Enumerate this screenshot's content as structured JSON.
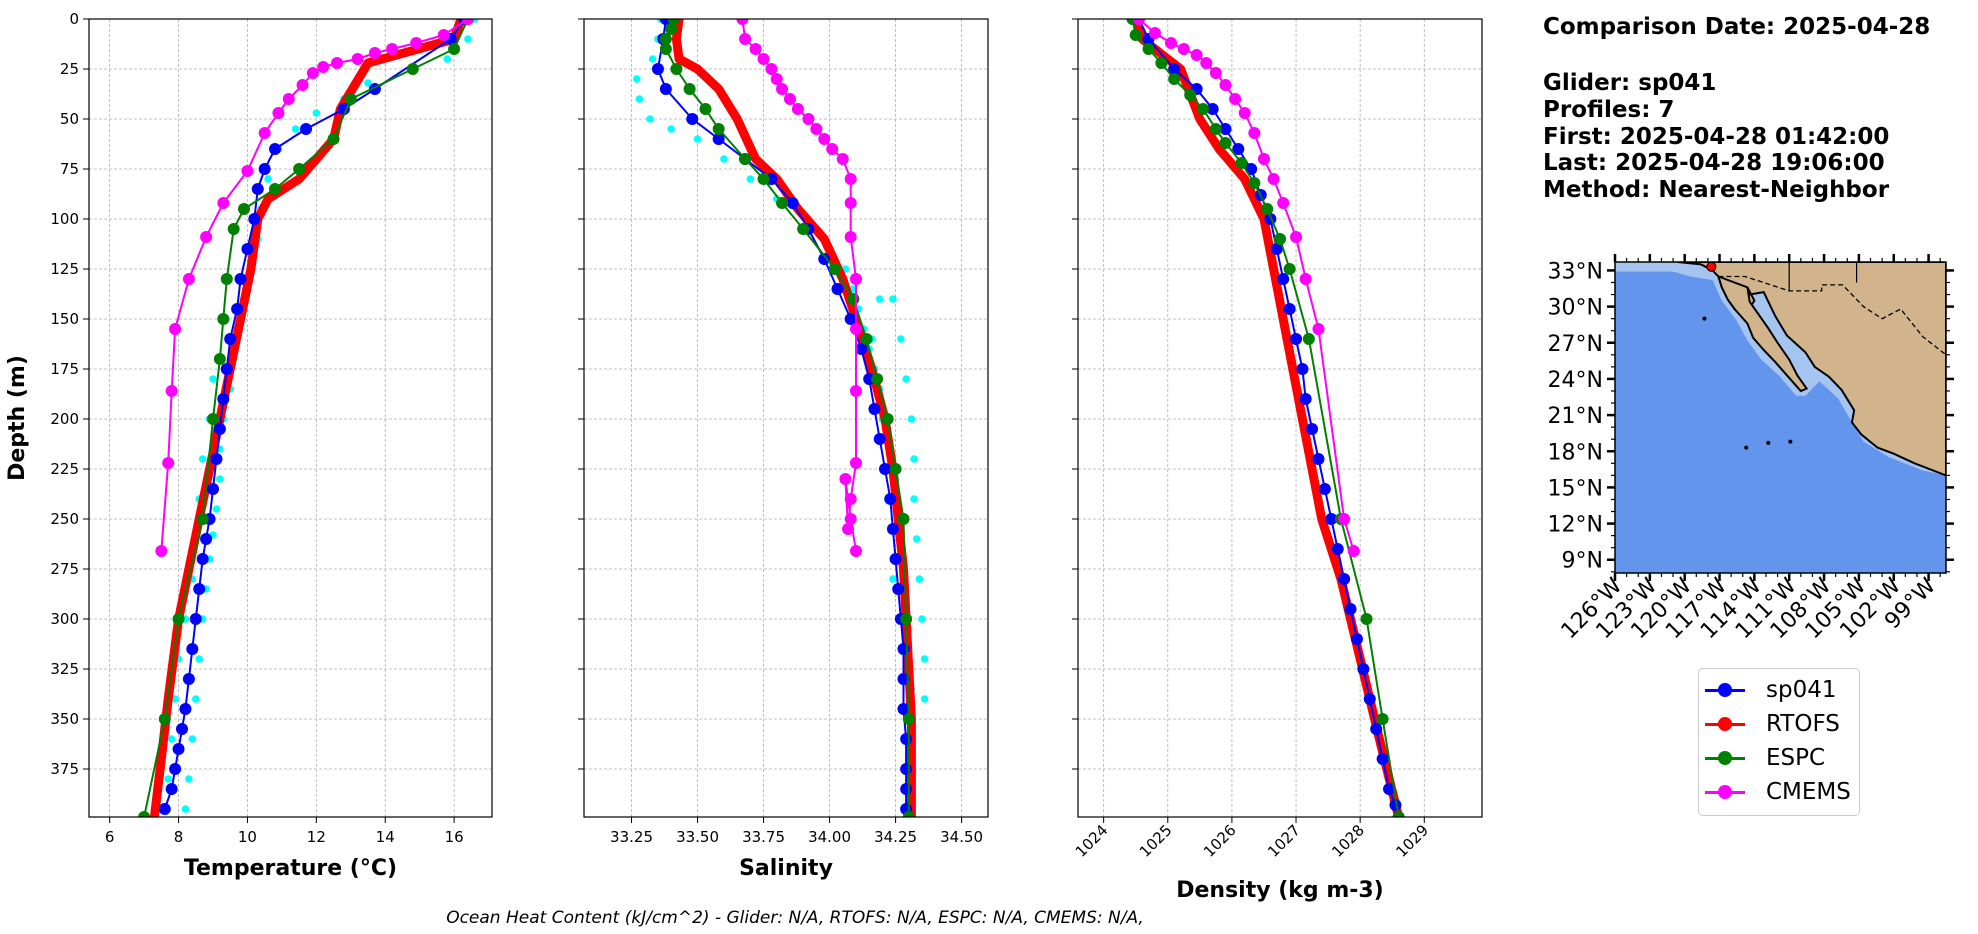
{
  "info": {
    "comparison_date": "Comparison Date: 2025-04-28",
    "glider": "Glider: sp041",
    "profiles": "Profiles: 7",
    "first": "First: 2025-04-28 01:42:00",
    "last": "Last: 2025-04-28 19:06:00",
    "method": "Method: Nearest-Neighbor"
  },
  "footer_text": "Ocean Heat Content (kJ/cm^2) - Glider: N/A,  RTOFS: N/A,  ESPC: N/A,  CMEMS: N/A,",
  "colors": {
    "sp041": "#0000ff",
    "RTOFS": "#ff0000",
    "ESPC": "#008000",
    "CMEMS": "#ff00ff",
    "raw": "#00ffff",
    "ocean": "#6495ed",
    "shelf": "#a6c4f0",
    "land": "#d2b48c",
    "grid": "#b0b0b0"
  },
  "legend": [
    {
      "name": "sp041",
      "color": "#0000ff"
    },
    {
      "name": "RTOFS",
      "color": "#ff0000"
    },
    {
      "name": "ESPC",
      "color": "#008000"
    },
    {
      "name": "CMEMS",
      "color": "#ff00ff"
    }
  ],
  "chart_data": [
    {
      "type": "line",
      "xlabel": "Temperature (°C)",
      "ylabel": "Depth (m)",
      "xlim": [
        5.4,
        17.1
      ],
      "ylim": [
        399,
        0
      ],
      "y_inverted": true,
      "grid": true,
      "xticks": [
        6,
        8,
        10,
        12,
        14,
        16
      ],
      "yticks": [
        0,
        25,
        50,
        75,
        100,
        125,
        150,
        175,
        200,
        225,
        250,
        275,
        300,
        325,
        350,
        375
      ],
      "raw_scatter": [
        [
          16.6,
          0
        ],
        [
          16.4,
          10
        ],
        [
          15.8,
          20
        ],
        [
          14.8,
          25
        ],
        [
          13.5,
          32
        ],
        [
          12.8,
          40
        ],
        [
          12.0,
          47
        ],
        [
          11.4,
          55
        ],
        [
          10.9,
          65
        ],
        [
          10.6,
          80
        ],
        [
          10.4,
          95
        ],
        [
          10.3,
          110
        ],
        [
          10.1,
          125
        ],
        [
          9.9,
          140
        ],
        [
          9.7,
          155
        ],
        [
          9.6,
          170
        ],
        [
          9.5,
          185
        ],
        [
          9.3,
          200
        ],
        [
          9.2,
          215
        ],
        [
          9.2,
          230
        ],
        [
          9.1,
          245
        ],
        [
          9.0,
          258
        ],
        [
          8.9,
          270
        ],
        [
          8.8,
          285
        ],
        [
          8.7,
          300
        ],
        [
          8.6,
          320
        ],
        [
          8.5,
          340
        ],
        [
          8.4,
          360
        ],
        [
          8.3,
          380
        ],
        [
          8.2,
          395
        ],
        [
          9.0,
          180
        ],
        [
          8.9,
          200
        ],
        [
          8.7,
          220
        ],
        [
          8.6,
          240
        ],
        [
          8.5,
          260
        ],
        [
          8.4,
          280
        ],
        [
          8.2,
          300
        ],
        [
          8.0,
          320
        ],
        [
          7.9,
          340
        ],
        [
          7.8,
          360
        ],
        [
          7.7,
          380
        ]
      ],
      "series": [
        {
          "name": "sp041",
          "x": [
            16.3,
            15.9,
            13.7,
            12.8,
            11.7,
            10.8,
            10.5,
            10.3,
            10.2,
            10.0,
            9.8,
            9.7,
            9.5,
            9.4,
            9.3,
            9.2,
            9.1,
            9.0,
            8.9,
            8.8,
            8.7,
            8.6,
            8.5,
            8.4,
            8.3,
            8.2,
            8.1,
            8.0,
            7.9,
            7.8,
            7.6
          ],
          "y": [
            0,
            10,
            35,
            45,
            55,
            65,
            75,
            85,
            100,
            115,
            130,
            145,
            160,
            175,
            190,
            205,
            220,
            235,
            250,
            260,
            270,
            285,
            300,
            315,
            330,
            345,
            355,
            365,
            375,
            385,
            395
          ]
        },
        {
          "name": "RTOFS",
          "x": [
            16.2,
            16.0,
            13.5,
            12.7,
            12.5,
            11.5,
            10.6,
            10.3,
            10.1,
            9.8,
            9.5,
            9.2,
            8.9,
            8.6,
            8.3,
            8.0,
            7.7,
            7.5,
            7.3
          ],
          "y": [
            0,
            10,
            22,
            45,
            60,
            80,
            90,
            100,
            125,
            150,
            175,
            200,
            225,
            250,
            275,
            300,
            340,
            370,
            399
          ]
        },
        {
          "name": "ESPC",
          "x": [
            16.4,
            16.0,
            14.8,
            13.0,
            12.5,
            11.5,
            10.8,
            9.9,
            9.6,
            9.4,
            9.3,
            9.2,
            9.0,
            8.7,
            8.0,
            7.6,
            7.0
          ],
          "y": [
            0,
            15,
            25,
            40,
            60,
            75,
            85,
            95,
            105,
            130,
            150,
            170,
            200,
            250,
            300,
            350,
            399
          ]
        },
        {
          "name": "CMEMS",
          "x": [
            16.4,
            15.7,
            14.9,
            14.2,
            13.7,
            13.2,
            12.6,
            12.2,
            11.9,
            11.6,
            11.2,
            10.9,
            10.5,
            10.0,
            9.3,
            8.8,
            8.3,
            7.9,
            7.8,
            7.7,
            7.5
          ],
          "y": [
            0,
            8,
            12,
            15,
            17,
            20,
            22,
            24,
            27,
            33,
            40,
            47,
            57,
            76,
            92,
            109,
            130,
            155,
            186,
            222,
            266
          ]
        }
      ]
    },
    {
      "type": "line",
      "xlabel": "Salinity",
      "ylim": [
        399,
        0
      ],
      "y_inverted": true,
      "xlim": [
        33.07,
        34.6
      ],
      "grid": true,
      "xticks": [
        "33.25",
        "33.50",
        "33.75",
        "34.00",
        "34.25",
        "34.50"
      ],
      "raw_scatter": [
        [
          33.36,
          0
        ],
        [
          33.35,
          10
        ],
        [
          33.33,
          20
        ],
        [
          33.27,
          30
        ],
        [
          33.28,
          40
        ],
        [
          33.32,
          50
        ],
        [
          33.4,
          55
        ],
        [
          33.5,
          60
        ],
        [
          33.6,
          70
        ],
        [
          33.7,
          80
        ],
        [
          33.8,
          90
        ],
        [
          33.88,
          95
        ],
        [
          33.95,
          105
        ],
        [
          34.0,
          115
        ],
        [
          34.06,
          125
        ],
        [
          34.09,
          135
        ],
        [
          34.11,
          145
        ],
        [
          34.13,
          155
        ],
        [
          34.15,
          165
        ],
        [
          34.17,
          175
        ],
        [
          34.19,
          185
        ],
        [
          34.21,
          200
        ],
        [
          34.23,
          215
        ],
        [
          34.25,
          230
        ],
        [
          34.26,
          245
        ],
        [
          34.27,
          260
        ],
        [
          34.28,
          275
        ],
        [
          34.29,
          290
        ],
        [
          34.3,
          305
        ],
        [
          34.3,
          320
        ],
        [
          34.31,
          335
        ],
        [
          34.31,
          350
        ],
        [
          34.31,
          365
        ],
        [
          34.31,
          380
        ],
        [
          34.31,
          395
        ],
        [
          34.24,
          140
        ],
        [
          34.27,
          160
        ],
        [
          34.29,
          180
        ],
        [
          34.31,
          200
        ],
        [
          34.32,
          220
        ],
        [
          34.32,
          240
        ],
        [
          34.33,
          260
        ],
        [
          34.34,
          280
        ],
        [
          34.35,
          300
        ],
        [
          34.36,
          320
        ],
        [
          34.36,
          340
        ],
        [
          34.19,
          140
        ],
        [
          34.16,
          160
        ],
        [
          34.2,
          200
        ],
        [
          34.22,
          240
        ],
        [
          34.24,
          280
        ]
      ],
      "series": [
        {
          "name": "sp041",
          "x": [
            33.38,
            33.37,
            33.35,
            33.38,
            33.48,
            33.58,
            33.68,
            33.78,
            33.86,
            33.92,
            33.98,
            34.03,
            34.08,
            34.12,
            34.15,
            34.17,
            34.19,
            34.21,
            34.23,
            34.24,
            34.25,
            34.26,
            34.27,
            34.28,
            34.28,
            34.28,
            34.29,
            34.29,
            34.29,
            34.29
          ],
          "y": [
            0,
            10,
            25,
            35,
            50,
            60,
            70,
            80,
            92,
            105,
            120,
            135,
            150,
            165,
            180,
            195,
            210,
            225,
            240,
            255,
            270,
            285,
            300,
            315,
            330,
            345,
            360,
            375,
            385,
            395
          ]
        },
        {
          "name": "RTOFS",
          "x": [
            33.43,
            33.42,
            33.43,
            33.5,
            33.58,
            33.65,
            33.72,
            33.8,
            33.88,
            33.98,
            34.05,
            34.1,
            34.16,
            34.21,
            34.24,
            34.26,
            34.28,
            34.29,
            34.3,
            34.31,
            34.31
          ],
          "y": [
            0,
            10,
            20,
            25,
            35,
            50,
            70,
            80,
            95,
            110,
            130,
            150,
            175,
            200,
            225,
            250,
            275,
            300,
            325,
            350,
            399
          ]
        },
        {
          "name": "ESPC",
          "x": [
            33.41,
            33.4,
            33.38,
            33.38,
            33.42,
            33.47,
            33.53,
            33.58,
            33.68,
            33.75,
            33.82,
            33.9,
            34.02,
            34.09,
            34.14,
            34.18,
            34.22,
            34.25,
            34.28,
            34.29,
            34.3,
            34.3
          ],
          "y": [
            0,
            5,
            10,
            15,
            25,
            35,
            45,
            55,
            70,
            80,
            92,
            105,
            125,
            140,
            160,
            180,
            200,
            225,
            250,
            300,
            350,
            399
          ]
        },
        {
          "name": "CMEMS",
          "x": [
            33.67,
            33.68,
            33.72,
            33.75,
            33.78,
            33.8,
            33.82,
            33.85,
            33.88,
            33.92,
            33.95,
            33.98,
            34.01,
            34.05,
            34.08,
            34.08,
            34.08,
            34.1,
            34.1,
            34.1,
            34.1,
            34.08,
            34.07,
            34.06,
            34.08,
            34.1
          ],
          "y": [
            0,
            10,
            15,
            20,
            25,
            30,
            35,
            40,
            45,
            50,
            55,
            60,
            65,
            70,
            80,
            92,
            109,
            130,
            155,
            186,
            222,
            240,
            255,
            230,
            250,
            266
          ]
        }
      ]
    },
    {
      "type": "line",
      "xlabel": "Density (kg m-3)",
      "ylim": [
        399,
        0
      ],
      "y_inverted": true,
      "xlim": [
        1023.6,
        1029.9
      ],
      "grid": true,
      "xticks": [
        1024,
        1025,
        1026,
        1027,
        1028,
        1029
      ],
      "series": [
        {
          "name": "sp041",
          "x": [
            1024.55,
            1024.7,
            1025.1,
            1025.45,
            1025.7,
            1025.9,
            1026.1,
            1026.3,
            1026.45,
            1026.6,
            1026.7,
            1026.8,
            1026.9,
            1027.0,
            1027.1,
            1027.15,
            1027.25,
            1027.35,
            1027.45,
            1027.55,
            1027.65,
            1027.75,
            1027.85,
            1027.95,
            1028.05,
            1028.15,
            1028.25,
            1028.35,
            1028.45,
            1028.55,
            1028.6
          ],
          "y": [
            0,
            10,
            25,
            35,
            45,
            55,
            65,
            75,
            88,
            100,
            115,
            130,
            145,
            160,
            175,
            190,
            205,
            220,
            235,
            250,
            265,
            280,
            295,
            310,
            325,
            340,
            355,
            370,
            385,
            393,
            399
          ]
        },
        {
          "name": "RTOFS",
          "x": [
            1024.5,
            1024.6,
            1025.2,
            1025.5,
            1025.8,
            1026.2,
            1026.5,
            1026.8,
            1027.1,
            1027.4,
            1027.7,
            1028.0,
            1028.3,
            1028.6
          ],
          "y": [
            0,
            10,
            25,
            50,
            65,
            80,
            100,
            150,
            200,
            250,
            280,
            320,
            360,
            399
          ]
        },
        {
          "name": "ESPC",
          "x": [
            1024.45,
            1024.5,
            1024.7,
            1024.9,
            1025.1,
            1025.35,
            1025.55,
            1025.75,
            1025.9,
            1026.15,
            1026.35,
            1026.55,
            1026.75,
            1026.9,
            1027.2,
            1027.7,
            1028.1,
            1028.35,
            1028.6
          ],
          "y": [
            0,
            8,
            15,
            22,
            30,
            38,
            45,
            55,
            62,
            72,
            82,
            95,
            110,
            125,
            160,
            250,
            300,
            350,
            399
          ]
        },
        {
          "name": "CMEMS",
          "x": [
            1024.55,
            1024.8,
            1025.05,
            1025.25,
            1025.45,
            1025.6,
            1025.75,
            1025.9,
            1026.05,
            1026.2,
            1026.35,
            1026.5,
            1026.65,
            1026.8,
            1027.0,
            1027.15,
            1027.35,
            1027.75,
            1027.9
          ],
          "y": [
            0,
            7,
            12,
            15,
            18,
            22,
            27,
            33,
            40,
            47,
            57,
            70,
            80,
            92,
            109,
            130,
            155,
            250,
            266
          ]
        }
      ]
    },
    {
      "type": "map",
      "lat_ticks": [
        "33°N",
        "30°N",
        "27°N",
        "24°N",
        "21°N",
        "18°N",
        "15°N",
        "12°N",
        "9°N"
      ],
      "lon_ticks": [
        "126°W",
        "123°W",
        "120°W",
        "117°W",
        "114°W",
        "111°W",
        "108°W",
        "105°W",
        "102°W",
        "99°W"
      ],
      "extent": {
        "lon": [
          -126.0,
          -97.5
        ],
        "lat": [
          7.9,
          33.7
        ]
      },
      "marker": {
        "lon": -117.7,
        "lat": 33.3,
        "color": "#ff0000"
      }
    }
  ]
}
